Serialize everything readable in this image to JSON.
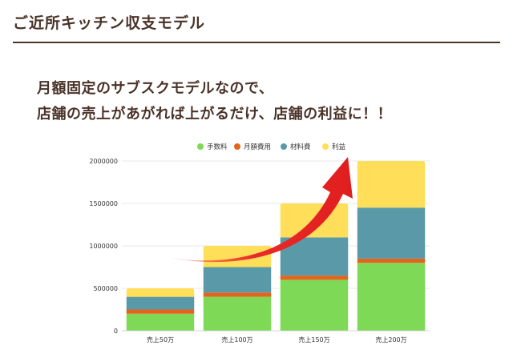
{
  "slide": {
    "title": "ご近所キッチン収支モデル",
    "headline_line1": "月額固定のサブスクモデルなので、",
    "headline_line2": "店舗の売上があがれば上がるだけ、店舗の利益に！！"
  },
  "chart_data": {
    "type": "bar",
    "stacked": true,
    "categories": [
      "売上50万",
      "売上100万",
      "売上150万",
      "売上200万"
    ],
    "series": [
      {
        "name": "手数料",
        "color": "#7ed957",
        "values": [
          200000,
          400000,
          600000,
          800000
        ]
      },
      {
        "name": "月額費用",
        "color": "#e3651d",
        "values": [
          50000,
          50000,
          50000,
          50000
        ]
      },
      {
        "name": "材料費",
        "color": "#5a9aa8",
        "values": [
          150000,
          300000,
          450000,
          600000
        ]
      },
      {
        "name": "利益",
        "color": "#ffde59",
        "values": [
          100000,
          250000,
          400000,
          550000
        ]
      }
    ],
    "y_ticks": [
      "0",
      "500000",
      "1000000",
      "1500000",
      "2000000"
    ],
    "ylim": [
      0,
      2000000
    ],
    "legend_position": "top",
    "grid": true,
    "annotation": "red upward curved arrow",
    "arrow_color": "#ea2a2a"
  }
}
